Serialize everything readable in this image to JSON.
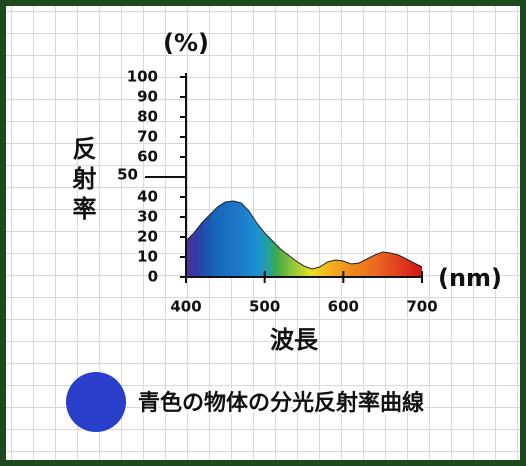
{
  "chart_data": {
    "type": "area",
    "y_unit": "(%)",
    "x_unit": "(nm)",
    "y_label": "反射率",
    "x_label": "波長",
    "x": [
      400,
      410,
      420,
      430,
      440,
      450,
      460,
      470,
      480,
      490,
      500,
      510,
      520,
      530,
      540,
      550,
      560,
      570,
      580,
      590,
      600,
      610,
      620,
      630,
      640,
      650,
      660,
      670,
      680,
      690,
      700
    ],
    "series": [
      {
        "name": "青色の物体の分光反射率曲線",
        "color": "#2a3fc9",
        "values": [
          18,
          22,
          27,
          31,
          35,
          37.5,
          38,
          37,
          33,
          27,
          22,
          18,
          14,
          11,
          8,
          5.5,
          4,
          5,
          7.5,
          8.5,
          8,
          6.5,
          7,
          9,
          11,
          12.5,
          12,
          11,
          9,
          7,
          5
        ]
      }
    ],
    "xlim": [
      400,
      700
    ],
    "xticks": [
      400,
      500,
      600,
      700
    ],
    "ylim": [
      0,
      100
    ],
    "yticks": [
      0,
      10,
      20,
      30,
      40,
      50,
      60,
      70,
      80,
      90,
      100
    ]
  }
}
